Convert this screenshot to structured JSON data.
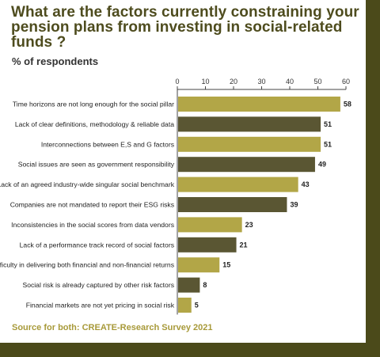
{
  "title": "What are the factors currently constraining your pension plans from investing in social-related funds ?",
  "subtitle": "% of respondents",
  "source": "Source for both: CREATE-Research Survey 2021",
  "colors": {
    "bar_light": "#b2a647",
    "bar_dark": "#5a5633",
    "frame": "#4b4a1a",
    "title": "#4e4c1e",
    "source": "#a89a3a"
  },
  "chart_data": {
    "type": "bar",
    "orientation": "horizontal",
    "categories": [
      "Time horizons are not long enough for the social pillar",
      "Lack of clear definitions, methodology & reliable data",
      "Interconnections between E,S and G factors",
      "Social issues are seen as government responsibility",
      "Lack of an agreed industry-wide singular social benchmark",
      "Companies are not mandated to report their ESG risks",
      "Inconsistencies in the social scores from data vendors",
      "Lack of a performance track record of social factors",
      "Difficulty in delivering both financial and non-financial returns",
      "Social risk is already captured by other risk factors",
      "Financial markets are not yet pricing in social risk"
    ],
    "values": [
      58,
      51,
      51,
      49,
      43,
      39,
      23,
      21,
      15,
      8,
      5
    ],
    "bar_color_pattern": [
      "light",
      "dark",
      "light",
      "dark",
      "light",
      "dark",
      "light",
      "dark",
      "light",
      "dark",
      "light"
    ],
    "xlim": [
      0,
      60
    ],
    "xticks": [
      0,
      10,
      20,
      30,
      40,
      50,
      60
    ],
    "xaxis_position": "top",
    "grid": false,
    "legend": "none"
  }
}
